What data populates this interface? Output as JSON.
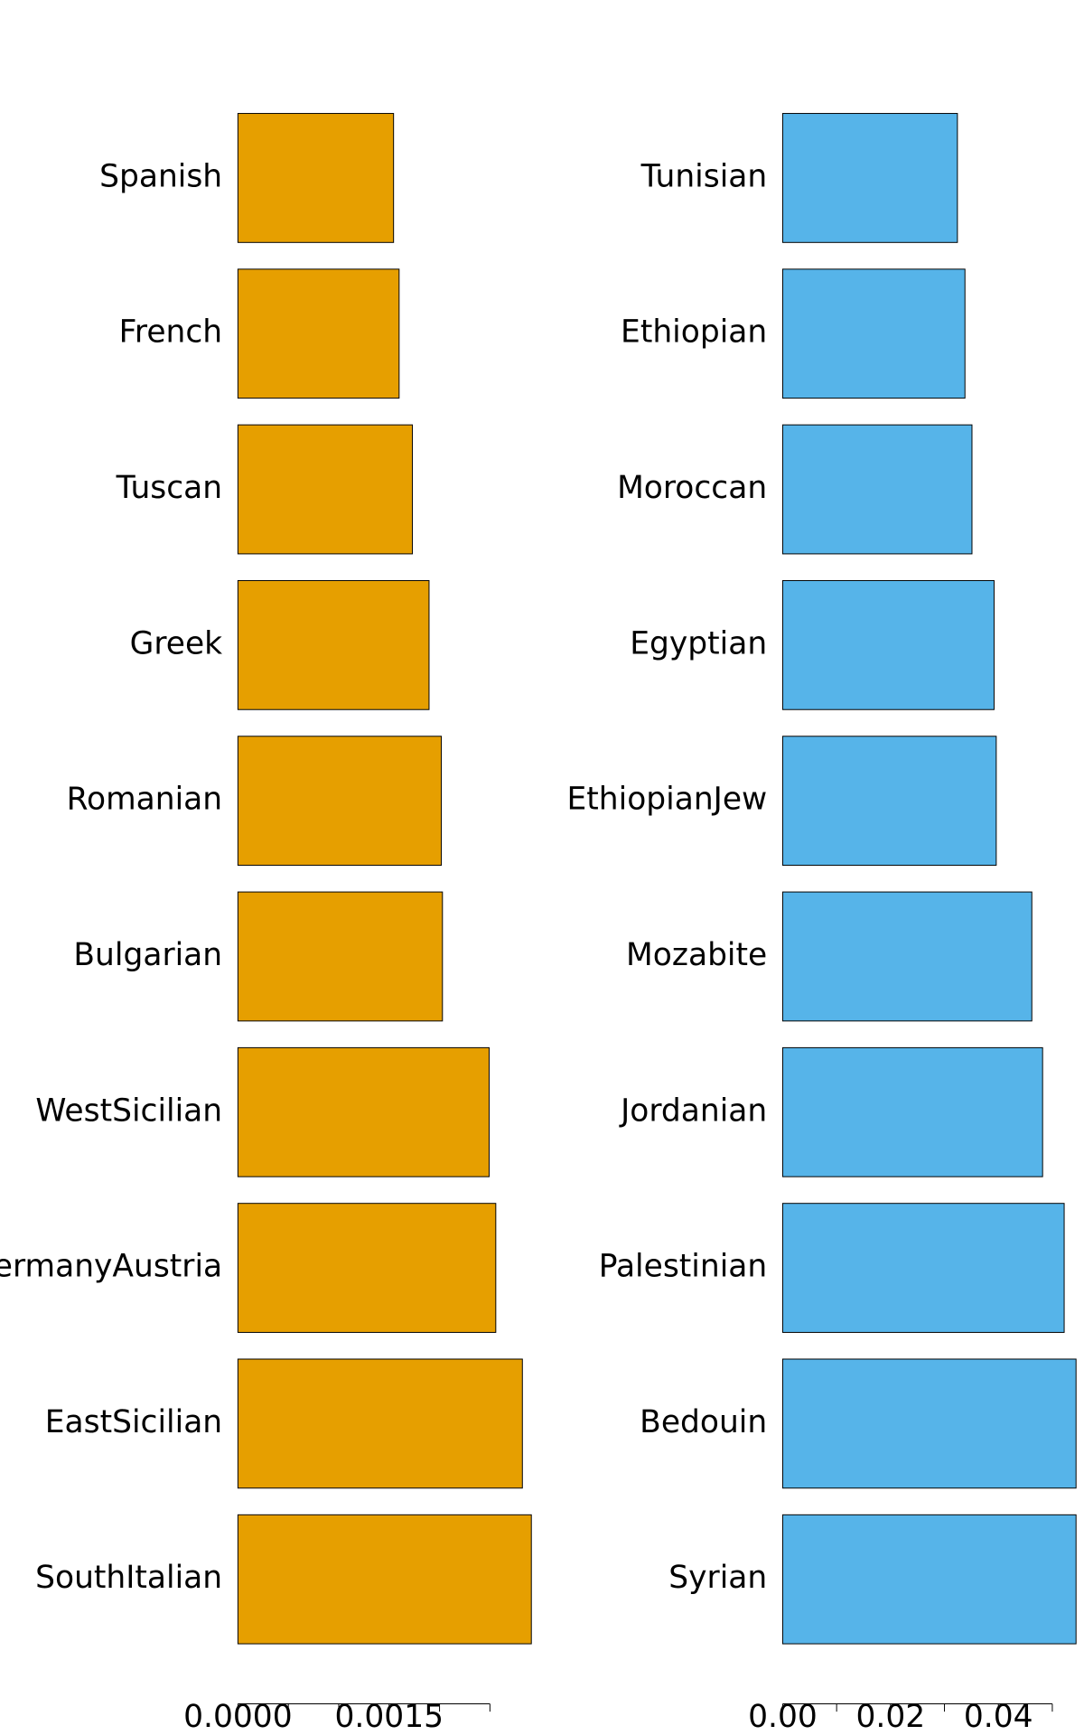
{
  "chart_data": [
    {
      "type": "bar",
      "orientation": "horizontal",
      "color": "#E69F00",
      "categories": [
        "Spanish",
        "French",
        "Tuscan",
        "Greek",
        "Romanian",
        "Bulgarian",
        "WestSicilian",
        "GermanyAustria",
        "EastSicilian",
        "SouthItalian"
      ],
      "values": [
        0.001544,
        0.001599,
        0.001731,
        0.001896,
        0.002018,
        0.002029,
        0.002492,
        0.002558,
        0.002822,
        0.002911
      ],
      "xlim": [
        0,
        0.003
      ],
      "xticks": [
        {
          "value": 0,
          "label": "0.0000"
        },
        {
          "value": 0.0005,
          "label": null
        },
        {
          "value": 0.001,
          "label": null
        },
        {
          "value": 0.0015,
          "label": "0.0015"
        },
        {
          "value": 0.002,
          "label": null
        },
        {
          "value": 0.0025,
          "label": null
        }
      ]
    },
    {
      "type": "bar",
      "orientation": "horizontal",
      "color": "#56B4E9",
      "categories": [
        "Tunisian",
        "Ethiopian",
        "Moroccan",
        "Egyptian",
        "EthiopianJew",
        "Mozabite",
        "Jordanian",
        "Palestinian",
        "Bedouin",
        "Syrian"
      ],
      "values": [
        0.0324,
        0.0338,
        0.0351,
        0.0392,
        0.0396,
        0.0462,
        0.0482,
        0.0522,
        0.0544,
        0.0544
      ],
      "xlim": [
        0,
        0.056
      ],
      "xticks": [
        {
          "value": 0,
          "label": "0.00"
        },
        {
          "value": 0.01,
          "label": null
        },
        {
          "value": 0.02,
          "label": "0.02"
        },
        {
          "value": 0.03,
          "label": null
        },
        {
          "value": 0.04,
          "label": "0.04"
        },
        {
          "value": 0.05,
          "label": null
        }
      ]
    }
  ]
}
